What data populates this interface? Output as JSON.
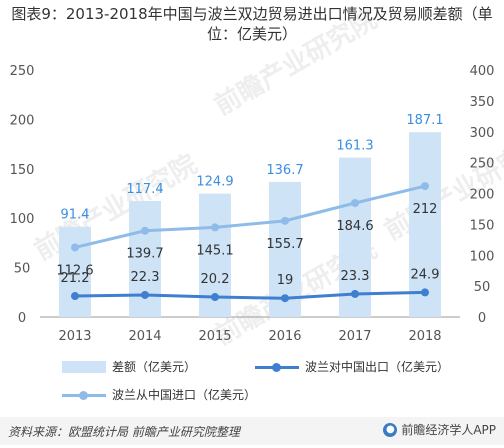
{
  "title": "图表9：2013-2018年中国与波兰双边贸易进出口情况及贸易顺差额（单位：亿美元）",
  "watermark": "前瞻产业研究院",
  "source": "资料来源：欧盟统计局 前瞻产业研究院整理",
  "brand": "前瞻经济学人APP",
  "colors": {
    "bar": "#cfe3f7",
    "bar_label": "#3b8fe0",
    "export": "#3f7fd0",
    "import": "#8fbbe8"
  },
  "legend": [
    {
      "label": "差额（亿美元）",
      "kind": "bar"
    },
    {
      "label": "波兰对中国出口（亿美元）",
      "kind": "line-dark"
    },
    {
      "label": "波兰从中国进口（亿美元）",
      "kind": "line-light"
    }
  ],
  "chart_data": {
    "type": "bar+line",
    "categories": [
      "2013",
      "2014",
      "2015",
      "2016",
      "2017",
      "2018"
    ],
    "series": [
      {
        "name": "差额（亿美元）",
        "type": "bar",
        "axis": "left",
        "values": [
          91.4,
          117.4,
          124.9,
          136.7,
          161.3,
          187.1
        ]
      },
      {
        "name": "波兰对中国出口（亿美元）",
        "type": "line",
        "axis": "left",
        "values": [
          21.2,
          22.3,
          20.2,
          19,
          23.3,
          24.9
        ]
      },
      {
        "name": "波兰从中国进口（亿美元）",
        "type": "line",
        "axis": "right",
        "values": [
          112.6,
          139.7,
          145.1,
          155.7,
          184.6,
          212
        ]
      }
    ],
    "ylim_left": [
      0,
      250
    ],
    "yticks_left": [
      0,
      50,
      100,
      150,
      200,
      250
    ],
    "ylim_right": [
      0,
      400
    ],
    "yticks_right": [
      0,
      50,
      100,
      150,
      200,
      250,
      300,
      350,
      400
    ],
    "grid": false,
    "legend_position": "bottom"
  }
}
